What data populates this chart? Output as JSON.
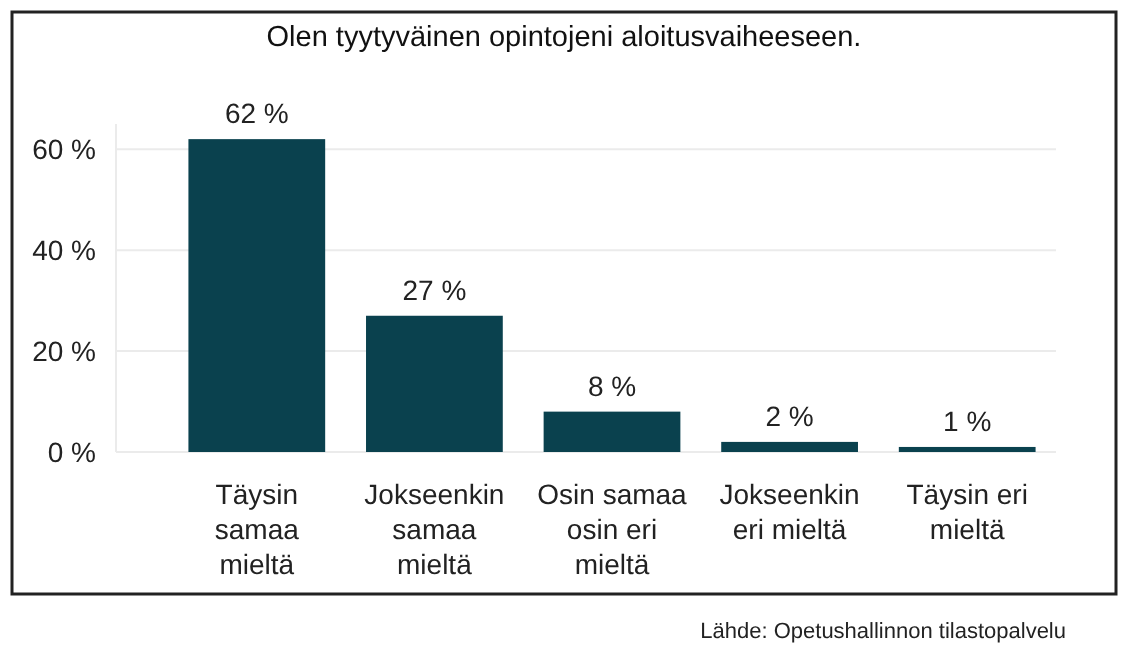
{
  "chart_data": {
    "type": "bar",
    "title": "Olen tyytyväinen opintojeni aloitusvaiheeseen.",
    "categories": [
      "Täysin samaa mieltä",
      "Jokseenkin samaa mieltä",
      "Osin samaa osin eri mieltä",
      "Jokseenkin eri mieltä",
      "Täysin eri mieltä"
    ],
    "values": [
      62,
      27,
      8,
      2,
      1
    ],
    "value_labels": [
      "62 %",
      "27 %",
      "8 %",
      "2 %",
      "1 %"
    ],
    "color": "#0a414e",
    "ylim": [
      0,
      65
    ],
    "yticks": [
      {
        "value": 0,
        "label": "0 %"
      },
      {
        "value": 20,
        "label": "20 %"
      },
      {
        "value": 40,
        "label": "40 %"
      },
      {
        "value": 60,
        "label": "60 %"
      }
    ],
    "grid": "y",
    "annotations": [
      "Lähde: Opetushallinnon tilastopalvelu"
    ]
  }
}
